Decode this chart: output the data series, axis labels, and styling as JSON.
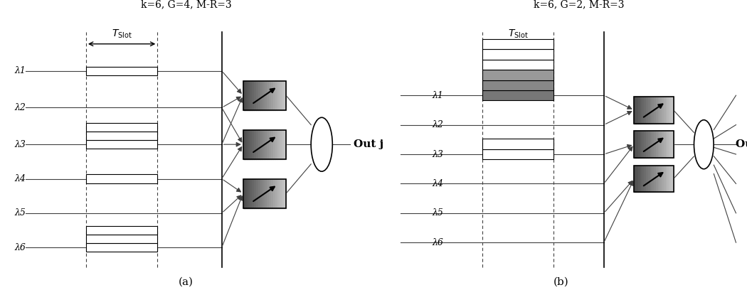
{
  "fig_width": 10.5,
  "fig_height": 4.08,
  "title_a": "k=6, G=4, M-R=3",
  "title_b": "k=6, G=2, M-R=3",
  "label_a": "(a)",
  "label_b": "(b)",
  "lambda_labels": [
    "λ1",
    "λ2",
    "λ3",
    "λ4",
    "λ5",
    "λ6"
  ],
  "tslot_label": "T",
  "tslot_sub": "Slot",
  "out_label": "Out j",
  "background": "#ffffff",
  "line_color": "#404040",
  "dark_color": "#222222",
  "gray_box": "#888888",
  "light_gray": "#bbbbbb",
  "dark_gray": "#555555"
}
